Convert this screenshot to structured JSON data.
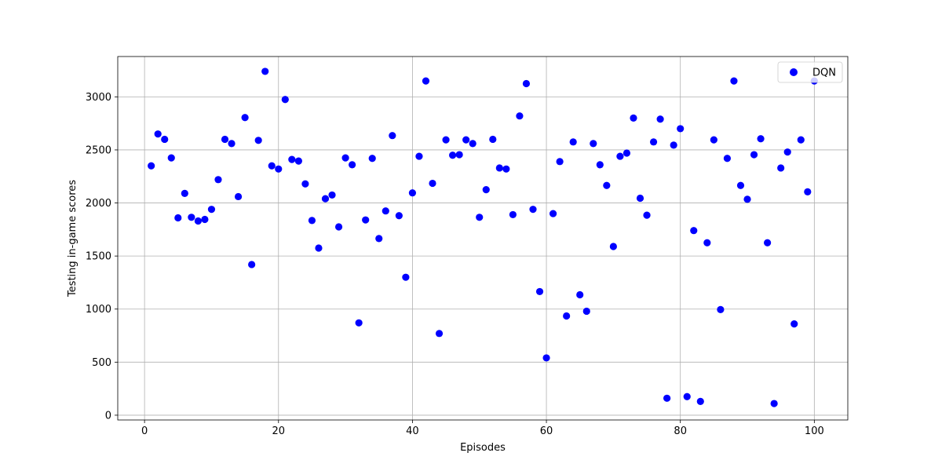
{
  "chart_data": {
    "type": "scatter",
    "title": "",
    "xlabel": "Episodes",
    "ylabel": "Testing in-game scores",
    "xlim": [
      -4,
      105
    ],
    "ylim": [
      -45,
      3380
    ],
    "xticks": [
      0,
      20,
      40,
      60,
      80,
      100
    ],
    "yticks": [
      0,
      500,
      1000,
      1500,
      2000,
      2500,
      3000
    ],
    "grid": true,
    "legend": {
      "placement": "top-right",
      "entries": [
        "DQN"
      ]
    },
    "series": [
      {
        "name": "DQN",
        "color": "#0000ff",
        "marker": "circle",
        "x": [
          1,
          2,
          3,
          4,
          5,
          6,
          7,
          8,
          9,
          10,
          11,
          12,
          13,
          14,
          15,
          16,
          17,
          18,
          19,
          20,
          21,
          22,
          23,
          24,
          25,
          26,
          27,
          28,
          29,
          30,
          31,
          32,
          33,
          34,
          35,
          36,
          37,
          38,
          39,
          40,
          41,
          42,
          43,
          44,
          45,
          46,
          47,
          48,
          49,
          50,
          51,
          52,
          53,
          54,
          55,
          56,
          57,
          58,
          59,
          60,
          61,
          62,
          63,
          64,
          65,
          66,
          67,
          68,
          69,
          70,
          71,
          72,
          73,
          74,
          75,
          76,
          77,
          78,
          79,
          80,
          81,
          82,
          83,
          84,
          85,
          86,
          87,
          88,
          89,
          90,
          91,
          92,
          93,
          94,
          95,
          96,
          97,
          98,
          99,
          100
        ],
        "y": [
          2350,
          2650,
          2600,
          2425,
          1860,
          2090,
          1865,
          1830,
          1845,
          1940,
          2220,
          2600,
          2560,
          2060,
          2805,
          1420,
          2590,
          3240,
          2350,
          2320,
          2975,
          2410,
          2395,
          2180,
          1835,
          1575,
          2040,
          2075,
          1775,
          2425,
          2360,
          870,
          1840,
          2420,
          1665,
          1925,
          2635,
          1880,
          1300,
          2095,
          2440,
          3150,
          2185,
          770,
          2595,
          2450,
          2455,
          2595,
          2560,
          1865,
          2125,
          2600,
          2330,
          2320,
          1890,
          2820,
          3125,
          1940,
          1165,
          540,
          1900,
          2390,
          935,
          2575,
          1135,
          980,
          2560,
          2360,
          2165,
          1590,
          2440,
          2470,
          2800,
          2045,
          1885,
          2575,
          2790,
          160,
          2545,
          2700,
          175,
          1740,
          130,
          1625,
          2595,
          995,
          2420,
          3150,
          2165,
          2035,
          2455,
          2605,
          1625,
          110,
          2330,
          2480,
          860,
          2595,
          2105,
          3150
        ]
      }
    ]
  }
}
